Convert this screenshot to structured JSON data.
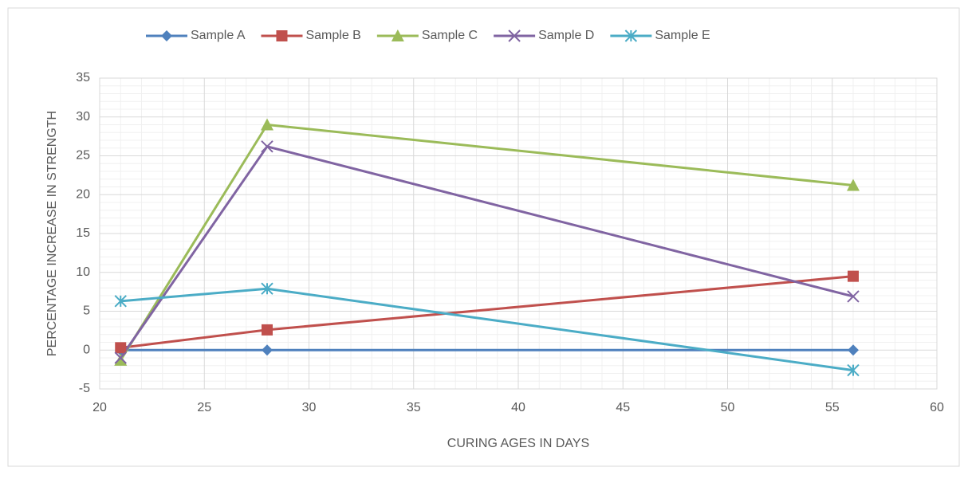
{
  "chart_data": {
    "type": "line",
    "x_label": "CURING AGES IN DAYS",
    "y_label": "PERCENTAGE INCREASE IN STRENGTH",
    "x": [
      21,
      28,
      56
    ],
    "series": [
      {
        "name": "Sample A",
        "color": "#4f81bd",
        "marker": "diamond",
        "values": [
          0,
          0,
          0
        ]
      },
      {
        "name": "Sample B",
        "color": "#c0504d",
        "marker": "square",
        "values": [
          0.3,
          2.6,
          9.5
        ]
      },
      {
        "name": "Sample C",
        "color": "#9bbb59",
        "marker": "triangle",
        "values": [
          -1.3,
          29,
          21.2
        ]
      },
      {
        "name": "Sample D",
        "color": "#8064a2",
        "marker": "x",
        "values": [
          -1,
          26.2,
          6.9
        ]
      },
      {
        "name": "Sample E",
        "color": "#4bacc6",
        "marker": "asterisk",
        "values": [
          6.3,
          7.9,
          -2.6
        ]
      }
    ],
    "xlim": [
      20,
      60
    ],
    "xticks": [
      20,
      25,
      30,
      35,
      40,
      45,
      50,
      55,
      60
    ],
    "ylim": [
      -5,
      35
    ],
    "yticks": [
      -5,
      0,
      5,
      10,
      15,
      20,
      25,
      30,
      35
    ],
    "grid": true,
    "minor_grid": true,
    "legend": "top"
  }
}
